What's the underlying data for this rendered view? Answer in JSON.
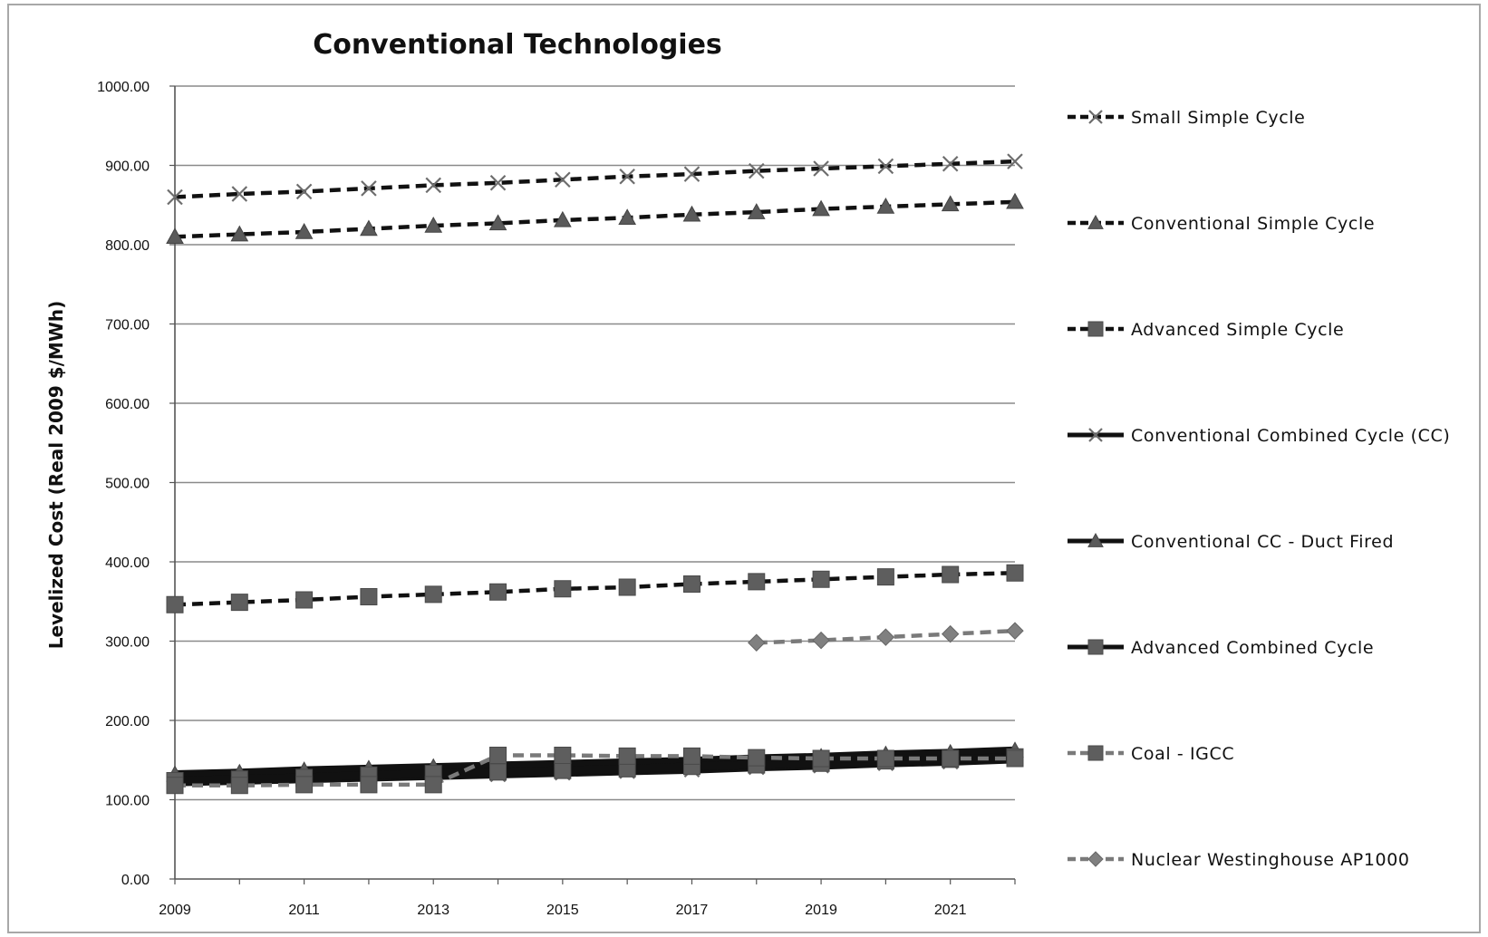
{
  "chart_data": {
    "type": "line",
    "title": "Conventional Technologies",
    "ylabel": "Levelized Cost (Real 2009 $/MWh)",
    "xlabel": "",
    "xlim": [
      2009,
      2022
    ],
    "ylim": [
      0,
      1000
    ],
    "yticks": [
      "0.00",
      "100.00",
      "200.00",
      "300.00",
      "400.00",
      "500.00",
      "600.00",
      "700.00",
      "800.00",
      "900.00",
      "1000.00"
    ],
    "xticks": [
      "2009",
      "2011",
      "2013",
      "2015",
      "2017",
      "2019",
      "2021"
    ],
    "grid": "horizontal",
    "legend_position": "right",
    "x": [
      2009,
      2010,
      2011,
      2012,
      2013,
      2014,
      2015,
      2016,
      2017,
      2018,
      2019,
      2020,
      2021,
      2022
    ],
    "series": [
      {
        "name": "Small Simple Cycle",
        "style": "dashed",
        "marker": "x",
        "color": "#111111",
        "values": [
          860,
          864,
          867,
          871,
          875,
          878,
          882,
          886,
          889,
          893,
          896,
          899,
          902,
          905
        ]
      },
      {
        "name": "Conventional Simple Cycle",
        "style": "dashed",
        "marker": "triangle",
        "color": "#111111",
        "values": [
          810,
          813,
          816,
          820,
          824,
          827,
          831,
          834,
          838,
          841,
          845,
          848,
          851,
          854
        ]
      },
      {
        "name": "Advanced Simple Cycle",
        "style": "dashed",
        "marker": "square",
        "color": "#111111",
        "values": [
          346,
          349,
          352,
          356,
          359,
          362,
          366,
          368,
          372,
          375,
          378,
          381,
          384,
          386
        ]
      },
      {
        "name": "Conventional Combined Cycle (CC)",
        "style": "solid",
        "marker": "x",
        "color": "#111111",
        "values": [
          122,
          124,
          126,
          128,
          130,
          132,
          134,
          136,
          138,
          141,
          143,
          146,
          148,
          151
        ]
      },
      {
        "name": "Conventional CC  - Duct Fired",
        "style": "solid",
        "marker": "triangle",
        "color": "#111111",
        "values": [
          132,
          134,
          137,
          139,
          141,
          143,
          145,
          147,
          149,
          152,
          154,
          157,
          159,
          162
        ]
      },
      {
        "name": "Advanced Combined Cycle",
        "style": "solid",
        "marker": "square",
        "color": "#111111",
        "values": [
          124,
          126,
          128,
          131,
          133,
          135,
          137,
          139,
          142,
          144,
          146,
          149,
          151,
          154
        ]
      },
      {
        "name": "Coal - IGCC",
        "style": "dashed",
        "marker": "square",
        "color": "#7a7a7a",
        "values": [
          118,
          118,
          119,
          119,
          119,
          156,
          156,
          155,
          155,
          153,
          152,
          152,
          152,
          152
        ]
      },
      {
        "name": "Nuclear Westinghouse AP1000",
        "style": "dashed",
        "marker": "diamond",
        "color": "#7a7a7a",
        "values": [
          null,
          null,
          null,
          null,
          null,
          null,
          null,
          null,
          null,
          298,
          301,
          305,
          309,
          313
        ]
      }
    ]
  }
}
